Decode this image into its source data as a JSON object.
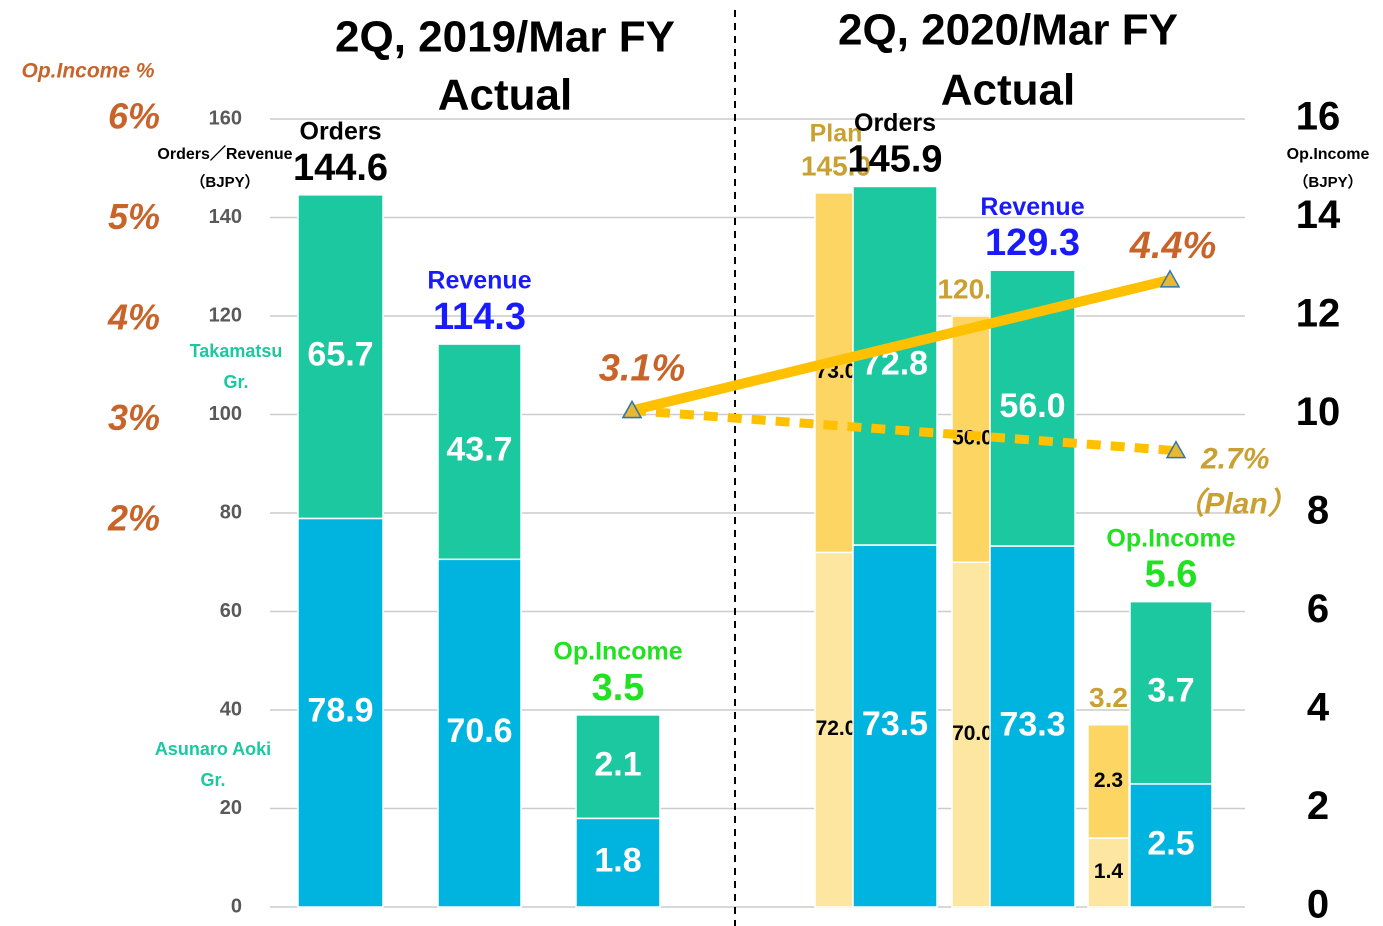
{
  "chart_data": {
    "type": "bar",
    "title_left": [
      "2Q, 2019/Mar FY",
      "Actual"
    ],
    "title_right": [
      "2Q, 2020/Mar FY",
      "Actual"
    ],
    "pct_axis_label": "Op.Income %",
    "left_axis_label": [
      "Orders／Revenue",
      "（BJPY）"
    ],
    "right_axis_label": [
      "Op.Income",
      "（BJPY）"
    ],
    "segment_names": [
      [
        "Asunaro Aoki",
        "Gr."
      ],
      [
        "Takamatsu",
        "Gr."
      ]
    ],
    "ylim": [
      0,
      160
    ],
    "yticks": [
      0,
      20,
      40,
      60,
      80,
      100,
      120,
      140,
      160
    ],
    "y2lim": [
      0,
      16
    ],
    "y2ticks": [
      0,
      2,
      4,
      6,
      8,
      10,
      12,
      14,
      16
    ],
    "pct_lim": [
      -1.84,
      6
    ],
    "pct_ticks": [
      {
        "value": 2,
        "label": "2%"
      },
      {
        "value": 3,
        "label": "3%"
      },
      {
        "value": 4,
        "label": "4%"
      },
      {
        "value": 5,
        "label": "5%"
      },
      {
        "value": 6,
        "label": "6%"
      }
    ],
    "bars": [
      {
        "name": "Orders",
        "total": 144.6,
        "total_label": "144.6",
        "axis": "y",
        "values": [
          78.9,
          65.7
        ],
        "value_labels": [
          "78.9",
          "65.7"
        ],
        "colors": [
          "#00b4e0",
          "#1cc8a0"
        ],
        "label_color": "#000000"
      },
      {
        "name": "Revenue",
        "total": 114.3,
        "total_label": "114.3",
        "axis": "y",
        "values": [
          70.6,
          43.7
        ],
        "value_labels": [
          "70.6",
          "43.7"
        ],
        "colors": [
          "#00b4e0",
          "#1cc8a0"
        ],
        "label_color": "#1a1aff"
      },
      {
        "name": "Op.Income",
        "total": 3.5,
        "total_label": "3.5",
        "axis": "y2",
        "values": [
          1.8,
          2.1
        ],
        "value_labels": [
          "1.8",
          "2.1"
        ],
        "colors": [
          "#00b4e0",
          "#1cc8a0"
        ],
        "label_color": "#22e022"
      },
      {
        "name": "Plan",
        "total": 145.0,
        "total_label": "145.0",
        "axis": "y",
        "values": [
          72.0,
          73.0
        ],
        "value_labels": [
          "72.0",
          "73.0"
        ],
        "colors": [
          "#fde6a0",
          "#fcd562"
        ],
        "label_color": "#c9a032"
      },
      {
        "name": "Orders",
        "total": 145.9,
        "total_label": "145.9",
        "axis": "y",
        "values": [
          73.5,
          72.8
        ],
        "value_labels": [
          "73.5",
          "72.8"
        ],
        "colors": [
          "#00b4e0",
          "#1cc8a0"
        ],
        "label_color": "#000000"
      },
      {
        "name": null,
        "total": 120.0,
        "total_label": "120.0",
        "axis": "y",
        "values": [
          70.0,
          50.0
        ],
        "value_labels": [
          "70.0",
          "50.0"
        ],
        "colors": [
          "#fde6a0",
          "#fcd562"
        ],
        "label_color": "#c9a032"
      },
      {
        "name": "Revenue",
        "total": 129.3,
        "total_label": "129.3",
        "axis": "y",
        "values": [
          73.3,
          56.0
        ],
        "value_labels": [
          "73.3",
          "56.0"
        ],
        "colors": [
          "#00b4e0",
          "#1cc8a0"
        ],
        "label_color": "#1a1aff"
      },
      {
        "name": null,
        "total": 3.2,
        "total_label": "3.2",
        "axis": "y2",
        "values": [
          1.4,
          2.3
        ],
        "value_labels": [
          "1.4",
          "2.3"
        ],
        "colors": [
          "#fde6a0",
          "#fcd562"
        ],
        "label_color": "#c9a032"
      },
      {
        "name": "Op.Income",
        "total": 5.6,
        "total_label": "5.6",
        "axis": "y2",
        "values": [
          2.5,
          3.7
        ],
        "value_labels": [
          "2.5",
          "3.7"
        ],
        "colors": [
          "#00b4e0",
          "#1cc8a0"
        ],
        "label_color": "#22e022"
      }
    ],
    "lines": [
      {
        "values": [
          3.1,
          4.4
        ],
        "value_labels": [
          "3.1%",
          "4.4%"
        ],
        "color": "#ffc000",
        "style": "solid"
      },
      {
        "values": [
          3.1,
          2.7
        ],
        "value_labels": [
          null,
          "2.7%"
        ],
        "color": "#ffc000",
        "style": "dashed",
        "note": "（Plan）"
      }
    ]
  }
}
